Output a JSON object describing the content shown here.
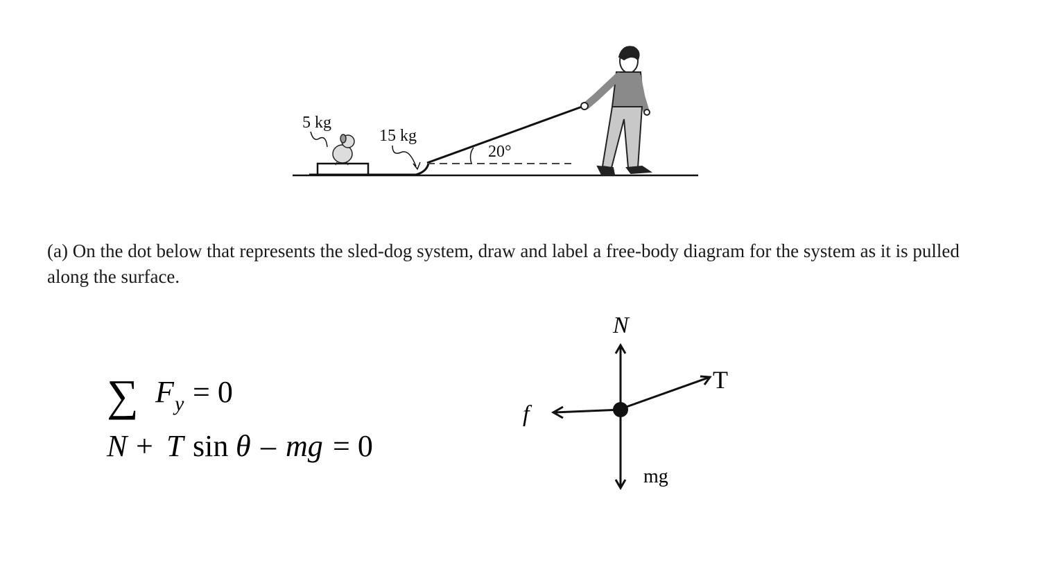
{
  "figure": {
    "dog_mass_label": "5 kg",
    "sled_mass_label": "15 kg",
    "angle_label": "20°"
  },
  "question": {
    "text": "(a) On the dot below that represents the sled-dog system, draw and label a free-body diagram for the system as it is pulled along the surface."
  },
  "equations": {
    "sum_symbol": "∑",
    "line1_lhs": "F",
    "line1_sub": "y",
    "line1_rhs": "= 0",
    "line2_N": "N",
    "line2_plus": "+",
    "line2_T": "T",
    "line2_sin": "sin",
    "line2_theta": "θ",
    "line2_minus": "–",
    "line2_mg": "mg",
    "line2_rhs": "= 0"
  },
  "fbd": {
    "normal_label": "N",
    "tension_label": "T",
    "friction_label": "f",
    "weight_label": "mg"
  }
}
